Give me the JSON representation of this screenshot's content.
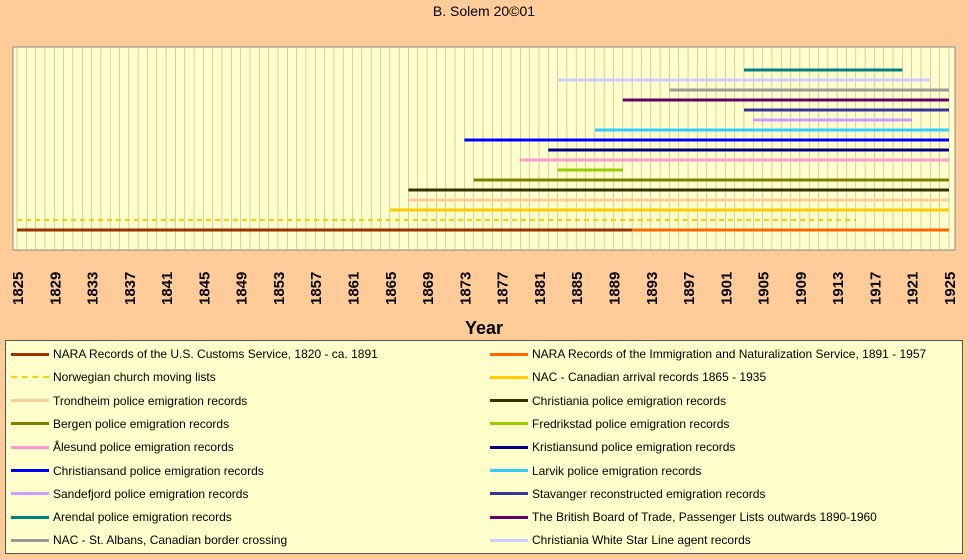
{
  "chart_data": {
    "type": "timeline",
    "title": "B. Solem 20©01",
    "xlabel": "Year",
    "xlim": [
      1825,
      1925
    ],
    "ticks": [
      1825,
      1829,
      1833,
      1837,
      1841,
      1845,
      1849,
      1853,
      1857,
      1861,
      1865,
      1869,
      1873,
      1877,
      1881,
      1885,
      1889,
      1893,
      1897,
      1901,
      1905,
      1909,
      1913,
      1917,
      1921,
      1925
    ],
    "grid": true,
    "series": [
      {
        "name": "NARA Records of the U.S. Customs Service, 1820 - ca. 1891",
        "color": "#993300",
        "start": 1825,
        "end": 1891,
        "dashed": false,
        "row": 0
      },
      {
        "name": "NARA Records of the Immigration and Naturalization Service, 1891 - 1957",
        "color": "#ff6600",
        "start": 1891,
        "end": 1925,
        "dashed": false,
        "row": 0
      },
      {
        "name": "Norwegian church moving lists",
        "color": "#ffcc00",
        "start": 1825,
        "end": 1915,
        "dashed": true,
        "row": 1
      },
      {
        "name": "NAC - Canadian arrival records 1865 - 1935",
        "color": "#ffcc00",
        "start": 1865,
        "end": 1925,
        "dashed": false,
        "row": 2
      },
      {
        "name": "Trondheim police emigration records",
        "color": "#ffcc99",
        "start": 1867,
        "end": 1925,
        "dashed": false,
        "row": 3
      },
      {
        "name": "Christiania police emigration records",
        "color": "#333300",
        "start": 1867,
        "end": 1925,
        "dashed": false,
        "row": 4
      },
      {
        "name": "Bergen police emigration records",
        "color": "#808000",
        "start": 1874,
        "end": 1925,
        "dashed": false,
        "row": 5
      },
      {
        "name": "Fredrikstad police emigration records",
        "color": "#99cc00",
        "start": 1883,
        "end": 1890,
        "dashed": false,
        "row": 6
      },
      {
        "name": "Ålesund police emigration records",
        "color": "#ff99cc",
        "start": 1879,
        "end": 1925,
        "dashed": false,
        "row": 7
      },
      {
        "name": "Kristiansund police emigration records",
        "color": "#000080",
        "start": 1882,
        "end": 1925,
        "dashed": false,
        "row": 8
      },
      {
        "name": "Christiansand police emigration records",
        "color": "#0000ff",
        "start": 1873,
        "end": 1925,
        "dashed": false,
        "row": 9
      },
      {
        "name": "Larvik police emigration records",
        "color": "#33ccff",
        "start": 1887,
        "end": 1925,
        "dashed": false,
        "row": 10
      },
      {
        "name": "Sandefjord police emigration records",
        "color": "#cc99ff",
        "start": 1904,
        "end": 1921,
        "dashed": false,
        "row": 11
      },
      {
        "name": "Stavanger reconstructed emigration records",
        "color": "#333399",
        "start": 1903,
        "end": 1925,
        "dashed": false,
        "row": 12
      },
      {
        "name": "Arendal police emigration records",
        "color": "#008080",
        "start": 1903,
        "end": 1920,
        "dashed": false,
        "row": 16
      },
      {
        "name": "The British Board of Trade, Passenger Lists outwards 1890-1960",
        "color": "#660066",
        "start": 1890,
        "end": 1925,
        "dashed": false,
        "row": 13
      },
      {
        "name": "NAC - St. Albans, Canadian border crossing",
        "color": "#999999",
        "start": 1895,
        "end": 1925,
        "dashed": false,
        "row": 14
      },
      {
        "name": "Christiania White Star Line agent records",
        "color": "#ccccff",
        "start": 1883,
        "end": 1923,
        "dashed": false,
        "row": 15
      }
    ]
  }
}
